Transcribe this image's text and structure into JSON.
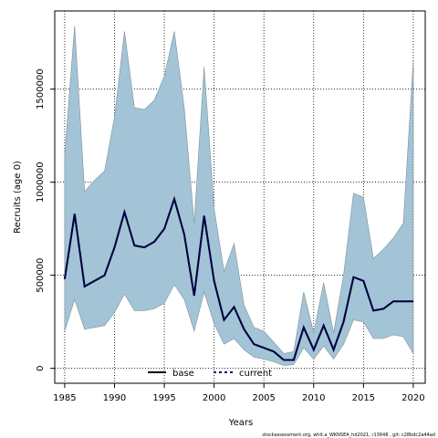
{
  "chart_data": {
    "type": "area",
    "title": "",
    "xlabel": "Years",
    "ylabel": "Recruits (age 0)",
    "xlim": [
      1984,
      2021.2
    ],
    "ylim": [
      -80000,
      1920000
    ],
    "xticks": [
      1985,
      1990,
      1995,
      2000,
      2005,
      2010,
      2015,
      2020
    ],
    "yticks": [
      0,
      500000,
      1000000,
      1500000
    ],
    "x_tick_labels": [
      "1985",
      "1990",
      "1995",
      "2000",
      "2005",
      "2010",
      "2015",
      "2020"
    ],
    "y_tick_labels": [
      "0",
      "500000",
      "1000000",
      "1500000"
    ],
    "grid": true,
    "legend_position": "bottom-center",
    "series": [
      {
        "name": "base",
        "style": "solid",
        "color": "#000000",
        "x": [
          1985,
          1986,
          1987,
          1988,
          1989,
          1990,
          1991,
          1992,
          1993,
          1994,
          1995,
          1996,
          1997,
          1998,
          1999,
          2000,
          2001,
          2002,
          2003,
          2004,
          2005,
          2006,
          2007,
          2008,
          2009,
          2010,
          2011,
          2012,
          2013,
          2014,
          2015,
          2016,
          2017,
          2018,
          2019,
          2020
        ],
        "values": [
          480000,
          830000,
          440000,
          470000,
          500000,
          650000,
          840000,
          660000,
          650000,
          680000,
          750000,
          910000,
          720000,
          390000,
          820000,
          470000,
          260000,
          330000,
          210000,
          130000,
          110000,
          90000,
          45000,
          45000,
          220000,
          100000,
          230000,
          100000,
          250000,
          490000,
          470000,
          310000,
          320000,
          360000,
          360000,
          360000
        ]
      },
      {
        "name": "current",
        "style": "dashed",
        "color": "#000080",
        "x": [
          1985,
          1986,
          1987,
          1988,
          1989,
          1990,
          1991,
          1992,
          1993,
          1994,
          1995,
          1996,
          1997,
          1998,
          1999,
          2000,
          2001,
          2002,
          2003,
          2004,
          2005,
          2006,
          2007,
          2008,
          2009,
          2010,
          2011,
          2012,
          2013,
          2014,
          2015,
          2016,
          2017,
          2018,
          2019,
          2020
        ],
        "values": [
          480000,
          830000,
          440000,
          470000,
          500000,
          650000,
          840000,
          660000,
          650000,
          680000,
          750000,
          910000,
          720000,
          390000,
          820000,
          470000,
          260000,
          330000,
          210000,
          130000,
          110000,
          90000,
          45000,
          45000,
          220000,
          100000,
          230000,
          100000,
          250000,
          490000,
          470000,
          310000,
          320000,
          360000,
          360000,
          360000
        ]
      }
    ],
    "confidence_band": {
      "color": "#a3c4d6",
      "x": [
        1985,
        1986,
        1987,
        1988,
        1989,
        1990,
        1991,
        1992,
        1993,
        1994,
        1995,
        1996,
        1997,
        1998,
        1999,
        2000,
        2001,
        2002,
        2003,
        2004,
        2005,
        2006,
        2007,
        2008,
        2009,
        2010,
        2011,
        2012,
        2013,
        2014,
        2015,
        2016,
        2017,
        2018,
        2019,
        2020
      ],
      "upper": [
        1150000,
        1840000,
        950000,
        1010000,
        1060000,
        1350000,
        1810000,
        1400000,
        1390000,
        1440000,
        1570000,
        1810000,
        1400000,
        780000,
        1620000,
        860000,
        520000,
        670000,
        340000,
        220000,
        200000,
        140000,
        80000,
        90000,
        410000,
        190000,
        460000,
        190000,
        500000,
        940000,
        920000,
        590000,
        640000,
        700000,
        780000,
        1650000
      ],
      "lower": [
        200000,
        370000,
        210000,
        220000,
        230000,
        300000,
        400000,
        310000,
        310000,
        320000,
        350000,
        450000,
        370000,
        200000,
        410000,
        240000,
        130000,
        160000,
        100000,
        60000,
        50000,
        35000,
        15000,
        20000,
        110000,
        50000,
        120000,
        50000,
        130000,
        260000,
        250000,
        160000,
        160000,
        180000,
        170000,
        80000
      ]
    }
  },
  "legend": {
    "base": "base",
    "current": "current"
  },
  "footnote": "stockassessment.org, whit.a_WKNSEA_hd2021, r13648 , git: c28bdc2a44ad",
  "colors": {
    "band": "#a3c4d6",
    "band_edge": "#7f8f99",
    "base_line": "#000000",
    "current_line": "#000080"
  }
}
